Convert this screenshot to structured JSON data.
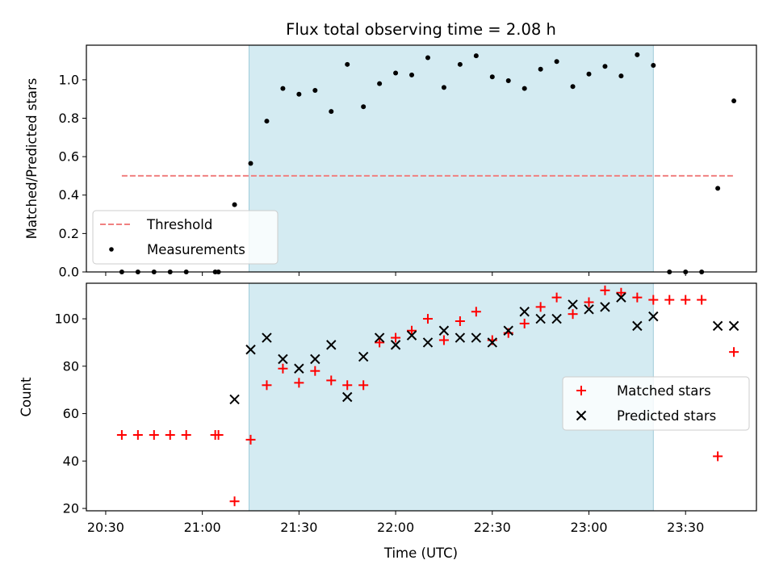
{
  "chart_data": {
    "type": "scatter",
    "title": "Flux total observing time = 2.08 h",
    "xlabel": "Time (UTC)",
    "xlim": [
      "20:24",
      "23:52"
    ],
    "x_ticks": [
      "20:30",
      "21:00",
      "21:30",
      "22:00",
      "22:30",
      "23:00",
      "23:30"
    ],
    "shaded_interval": {
      "start": "21:14.5",
      "end": "23:20",
      "color": "#add8e6"
    },
    "panels": [
      {
        "id": "ratio",
        "ylabel": "Matched/Predicted stars",
        "ylim": [
          0,
          1.18
        ],
        "y_ticks": [
          "0.0",
          "0.2",
          "0.4",
          "0.6",
          "0.8",
          "1.0"
        ],
        "legend_position": "lower-left",
        "series": [
          {
            "name": "Threshold",
            "kind": "line",
            "style": "dashed",
            "color": "#f08080",
            "x": [
              "20:35",
              "23:45"
            ],
            "y": [
              0.5,
              0.5
            ]
          },
          {
            "name": "Measurements",
            "kind": "scatter",
            "marker": "dot",
            "color": "#000000",
            "x": [
              "20:35",
              "20:40",
              "20:45",
              "20:50",
              "20:55",
              "21:04",
              "21:05",
              "21:10",
              "21:15",
              "21:20",
              "21:25",
              "21:30",
              "21:35",
              "21:40",
              "21:45",
              "21:50",
              "21:55",
              "22:00",
              "22:05",
              "22:10",
              "22:15",
              "22:20",
              "22:25",
              "22:30",
              "22:35",
              "22:40",
              "22:45",
              "22:50",
              "22:55",
              "23:00",
              "23:05",
              "23:10",
              "23:15",
              "23:20",
              "23:25",
              "23:30",
              "23:35",
              "23:40",
              "23:45"
            ],
            "y": [
              0,
              0,
              0,
              0,
              0,
              0,
              0,
              0.35,
              0.565,
              0.785,
              0.955,
              0.925,
              0.945,
              0.835,
              1.08,
              0.86,
              0.98,
              1.035,
              1.025,
              1.115,
              0.96,
              1.08,
              1.125,
              1.015,
              0.995,
              0.955,
              1.055,
              1.095,
              0.965,
              1.03,
              1.07,
              1.02,
              1.13,
              1.075,
              0,
              0,
              0,
              0.435,
              0.89
            ]
          }
        ]
      },
      {
        "id": "counts",
        "ylabel": "Count",
        "ylim": [
          19,
          115
        ],
        "y_ticks": [
          "20",
          "40",
          "60",
          "80",
          "100"
        ],
        "legend_position": "center-right",
        "series": [
          {
            "name": "Matched stars",
            "kind": "scatter",
            "marker": "plus",
            "color": "#ff0000",
            "x": [
              "20:35",
              "20:40",
              "20:45",
              "20:50",
              "20:55",
              "21:04",
              "21:05",
              "21:10",
              "21:15",
              "21:20",
              "21:25",
              "21:30",
              "21:35",
              "21:40",
              "21:45",
              "21:50",
              "21:55",
              "22:00",
              "22:05",
              "22:10",
              "22:15",
              "22:20",
              "22:25",
              "22:30",
              "22:35",
              "22:40",
              "22:45",
              "22:50",
              "22:55",
              "23:00",
              "23:05",
              "23:10",
              "23:15",
              "23:20",
              "23:25",
              "23:30",
              "23:35",
              "23:40",
              "23:45"
            ],
            "y": [
              51,
              51,
              51,
              51,
              51,
              51,
              51,
              23,
              49,
              72,
              79,
              73,
              78,
              74,
              72,
              72,
              90,
              92,
              95,
              100,
              91,
              99,
              103,
              91,
              94,
              98,
              105,
              109,
              102,
              107,
              112,
              111,
              109,
              108,
              108,
              108,
              108,
              42,
              86
            ]
          },
          {
            "name": "Predicted stars",
            "kind": "scatter",
            "marker": "x",
            "color": "#000000",
            "x": [
              "21:10",
              "21:15",
              "21:20",
              "21:25",
              "21:30",
              "21:35",
              "21:40",
              "21:45",
              "21:50",
              "21:55",
              "22:00",
              "22:05",
              "22:10",
              "22:15",
              "22:20",
              "22:25",
              "22:30",
              "22:35",
              "22:40",
              "22:45",
              "22:50",
              "22:55",
              "23:00",
              "23:05",
              "23:10",
              "23:15",
              "23:20",
              "23:40",
              "23:45"
            ],
            "y": [
              66,
              87,
              92,
              83,
              79,
              83,
              89,
              67,
              84,
              92,
              89,
              93,
              90,
              95,
              92,
              92,
              90,
              95,
              103,
              100,
              100,
              106,
              104,
              105,
              109,
              97,
              101,
              97,
              97
            ]
          }
        ]
      }
    ]
  }
}
